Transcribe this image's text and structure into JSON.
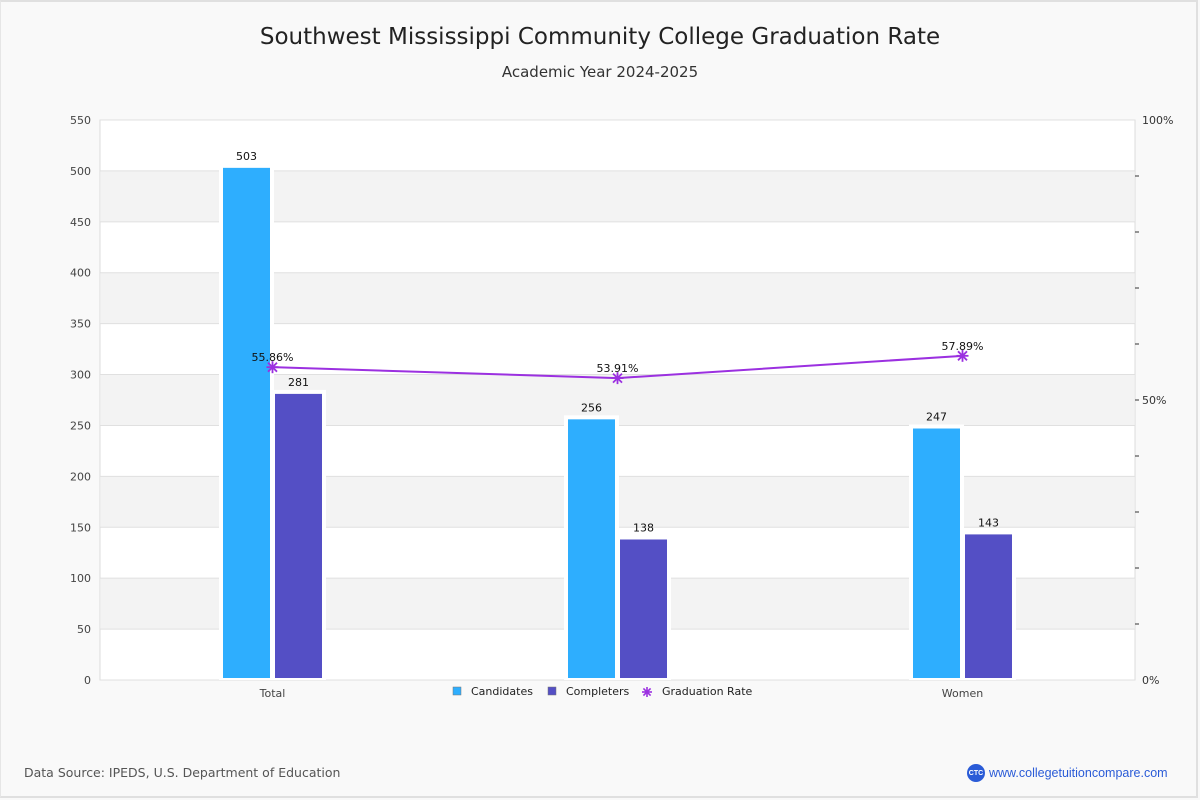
{
  "header": {
    "title": "Southwest Mississippi Community College Graduation Rate",
    "subtitle": "Academic Year 2024-2025"
  },
  "footer": {
    "source": "Data Source: IPEDS, U.S. Department of Education",
    "brand_logo": "CTC",
    "brand_url": "www.collegetuitioncompare.com"
  },
  "colors": {
    "candidates": "#2eaefe",
    "completers": "#544fc5",
    "rate": "#9b30e0"
  },
  "chart_data": {
    "type": "bar",
    "title": "Southwest Mississippi Community College Graduation Rate",
    "subtitle": "Academic Year 2024-2025",
    "categories": [
      "Total",
      "",
      "Women"
    ],
    "series": [
      {
        "name": "Candidates",
        "type": "bar",
        "axis": "left",
        "values": [
          503,
          256,
          247
        ]
      },
      {
        "name": "Completers",
        "type": "bar",
        "axis": "left",
        "values": [
          281,
          138,
          143
        ]
      },
      {
        "name": "Graduation Rate",
        "type": "line",
        "axis": "right",
        "values": [
          55.86,
          53.91,
          57.89
        ],
        "labels": [
          "55.86%",
          "53.91%",
          "57.89%"
        ]
      }
    ],
    "left_axis": {
      "ylim": [
        0,
        550
      ],
      "ticks": [
        0,
        50,
        100,
        150,
        200,
        250,
        300,
        350,
        400,
        450,
        500,
        550
      ]
    },
    "right_axis": {
      "ylim": [
        0,
        100
      ],
      "tick_labels": [
        "0%",
        "50%",
        "100%"
      ]
    },
    "grid": true,
    "legend": {
      "position": "bottom-center",
      "items": [
        "Candidates",
        "Completers",
        "Graduation Rate"
      ]
    }
  }
}
